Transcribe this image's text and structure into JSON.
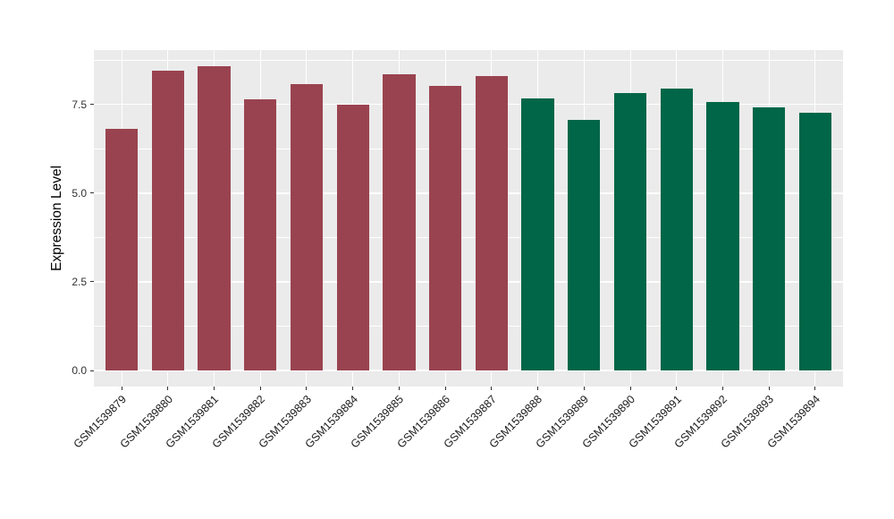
{
  "figure": {
    "background": "#FFFFFF",
    "panel_background": "#EBEBEB",
    "grid_color": "#FFFFFF"
  },
  "chart_data": {
    "type": "bar",
    "title": "",
    "xlabel": "",
    "ylabel": "Expression Level",
    "legend": "none",
    "grid": "on",
    "ylim": [
      0,
      9.03
    ],
    "yticks": [
      0,
      2.5,
      5,
      7.5
    ],
    "ytick_labels": [
      "0.0",
      "2.5",
      "5.0",
      "7.5"
    ],
    "y_minor_ticks": [
      1.25,
      3.75,
      6.25,
      8.75
    ],
    "categories": [
      "GSM1539879",
      "GSM1539880",
      "GSM1539881",
      "GSM1539882",
      "GSM1539883",
      "GSM1539884",
      "GSM1539885",
      "GSM1539886",
      "GSM1539887",
      "GSM1539888",
      "GSM1539889",
      "GSM1539890",
      "GSM1539891",
      "GSM1539892",
      "GSM1539893",
      "GSM1539894"
    ],
    "values": [
      6.82,
      8.45,
      8.57,
      7.64,
      8.07,
      7.48,
      8.35,
      8.01,
      8.29,
      7.66,
      7.06,
      7.81,
      7.94,
      7.56,
      7.42,
      7.26
    ],
    "bar_group_index": [
      0,
      0,
      0,
      0,
      0,
      0,
      0,
      0,
      0,
      1,
      1,
      1,
      1,
      1,
      1,
      1
    ],
    "palette": [
      "#9A4350",
      "#006647"
    ],
    "bar_width_fraction": 0.7,
    "axis_text_color": "#1A1A1A"
  }
}
